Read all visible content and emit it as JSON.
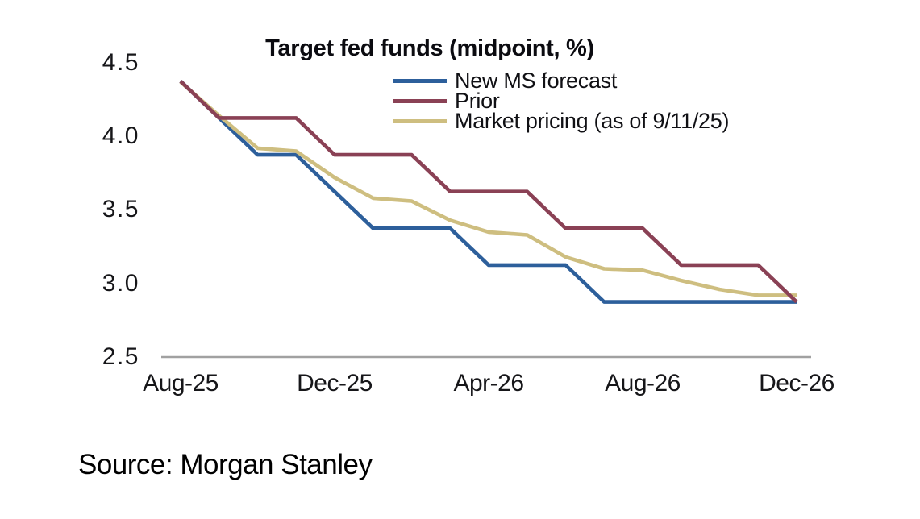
{
  "source": "Source: Morgan Stanley",
  "chart_data": {
    "type": "line",
    "title": "Target fed funds (midpoint, %)",
    "xlabel": "",
    "ylabel": "",
    "ylim": [
      2.5,
      4.5
    ],
    "grid": false,
    "legend_position": "top-right-inside",
    "x": [
      "Aug-25",
      "Sep-25",
      "Oct-25",
      "Nov-25",
      "Dec-25",
      "Jan-26",
      "Feb-26",
      "Mar-26",
      "Apr-26",
      "May-26",
      "Jun-26",
      "Jul-26",
      "Aug-26",
      "Sep-26",
      "Oct-26",
      "Nov-26",
      "Dec-26"
    ],
    "x_ticks": [
      "Aug-25",
      "Dec-25",
      "Apr-26",
      "Aug-26",
      "Dec-26"
    ],
    "y_ticks": [
      "4.5",
      "4.0",
      "3.5",
      "3.0",
      "2.5"
    ],
    "axis_line_color": "#a1a1a1",
    "series": [
      {
        "name": "New MS forecast",
        "color": "#2d5f9b",
        "values": [
          4.375,
          4.125,
          3.875,
          3.875,
          3.625,
          3.375,
          3.375,
          3.375,
          3.125,
          3.125,
          3.125,
          2.875,
          2.875,
          2.875,
          2.875,
          2.875,
          2.875
        ]
      },
      {
        "name": "Prior",
        "color": "#8a4155",
        "values": [
          4.375,
          4.125,
          4.125,
          4.125,
          3.875,
          3.875,
          3.875,
          3.625,
          3.625,
          3.625,
          3.375,
          3.375,
          3.375,
          3.125,
          3.125,
          3.125,
          2.875
        ]
      },
      {
        "name": "Market pricing (as of 9/11/25)",
        "color": "#cebe80",
        "values": [
          4.37,
          4.14,
          3.92,
          3.9,
          3.72,
          3.58,
          3.56,
          3.43,
          3.35,
          3.33,
          3.18,
          3.1,
          3.09,
          3.02,
          2.96,
          2.92,
          2.92
        ]
      }
    ]
  }
}
